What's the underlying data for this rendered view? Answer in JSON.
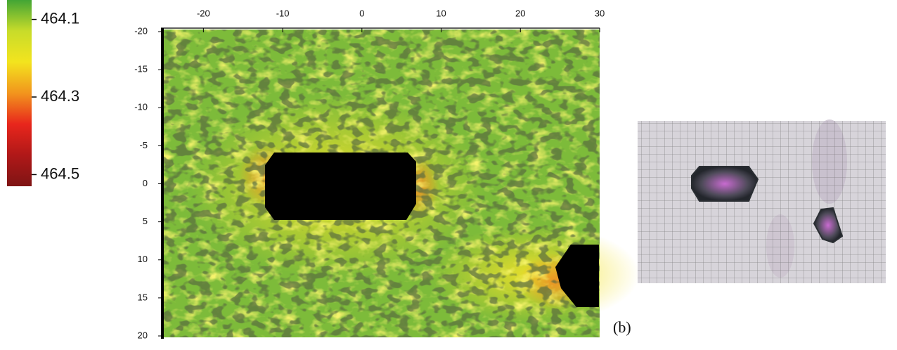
{
  "chart_data": {
    "type": "heatmap",
    "xlim": [
      -25,
      30
    ],
    "xticks": [
      -20,
      -10,
      0,
      10,
      20,
      30
    ],
    "ylim": [
      -20,
      20
    ],
    "yticks": [
      -20,
      -15,
      -10,
      -5,
      0,
      5,
      10,
      15,
      20
    ],
    "colorbar": {
      "lim": [
        464.05,
        464.53
      ],
      "ticks": [
        464.1,
        464.3,
        464.5
      ],
      "colors": [
        "#43a535",
        "#c8dc2a",
        "#f3e41e",
        "#f2951d",
        "#e8261c",
        "#b01818",
        "#7e1414"
      ]
    }
  },
  "panel_label": "(b)"
}
